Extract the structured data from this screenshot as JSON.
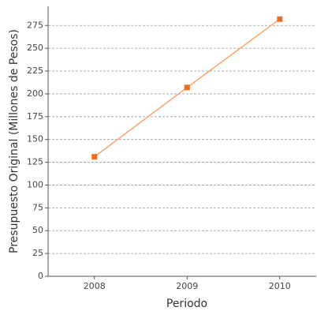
{
  "chart_data": {
    "type": "line",
    "x_label": "Periodo",
    "y_label": "Presupuesto Original (Millones de Pesos)",
    "categories": [
      "2008",
      "2009",
      "2010"
    ],
    "series": [
      {
        "name": "Presupuesto Original",
        "color": "#f9a36b",
        "marker_color": "#f26a1b",
        "values": [
          131,
          207,
          282
        ]
      }
    ],
    "ylim": [
      0,
      296
    ],
    "yticks": [
      0,
      25,
      50,
      75,
      100,
      125,
      150,
      175,
      200,
      225,
      250,
      275
    ],
    "grid": true
  }
}
